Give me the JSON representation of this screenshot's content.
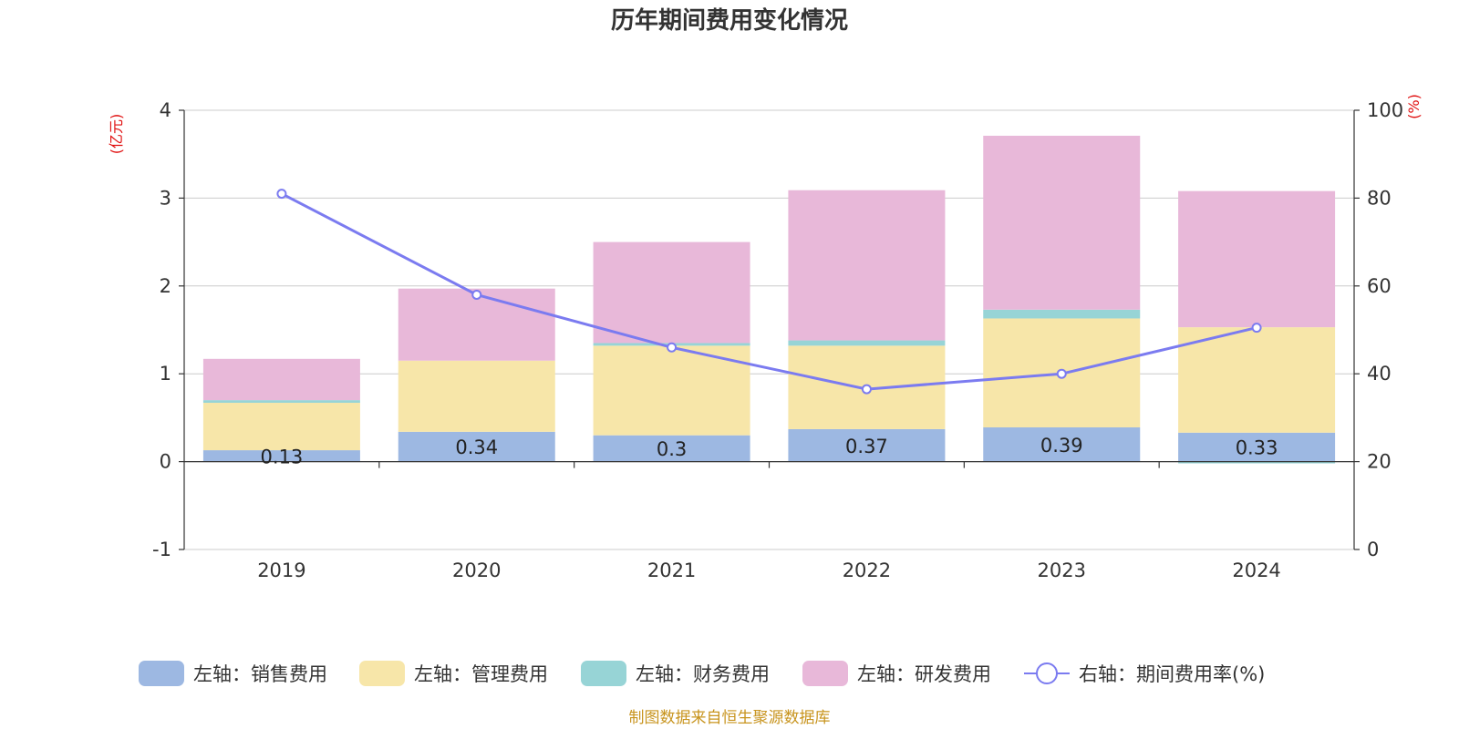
{
  "chart_data": {
    "type": "bar",
    "title": "历年期间费用变化情况",
    "categories": [
      "2019",
      "2020",
      "2021",
      "2022",
      "2023",
      "2024"
    ],
    "series": [
      {
        "name": "左轴：销售费用",
        "type": "bar",
        "axis": "left",
        "color": "#9db8e2",
        "values": [
          0.13,
          0.34,
          0.3,
          0.37,
          0.39,
          0.33
        ],
        "labels": [
          "0.13",
          "0.34",
          "0.3",
          "0.37",
          "0.39",
          "0.33"
        ]
      },
      {
        "name": "左轴：管理费用",
        "type": "bar",
        "axis": "left",
        "color": "#f7e6a9",
        "values": [
          0.54,
          0.81,
          1.02,
          0.95,
          1.24,
          1.2
        ]
      },
      {
        "name": "左轴：财务费用",
        "type": "bar",
        "axis": "left",
        "color": "#97d4d6",
        "values": [
          0.03,
          0.0,
          0.03,
          0.06,
          0.1,
          -0.02
        ]
      },
      {
        "name": "左轴：研发费用",
        "type": "bar",
        "axis": "left",
        "color": "#e8b8d9",
        "values": [
          0.47,
          0.82,
          1.15,
          1.71,
          1.98,
          1.55
        ]
      },
      {
        "name": "右轴：期间费用率(%)",
        "type": "line",
        "axis": "right",
        "color": "#7b7bf0",
        "values": [
          81.0,
          58.0,
          46.0,
          36.5,
          40.0,
          50.5
        ]
      }
    ],
    "y_left": {
      "unit": "(亿元)",
      "min": -1,
      "max": 4,
      "ticks": [
        "-1",
        "0",
        "1",
        "2",
        "3",
        "4"
      ]
    },
    "y_right": {
      "unit": "(%)",
      "min": 0,
      "max": 100,
      "ticks": [
        "0",
        "20",
        "40",
        "60",
        "80",
        "100"
      ]
    },
    "grid": true,
    "legend_position": "bottom",
    "source": "制图数据来自恒生聚源数据库"
  }
}
